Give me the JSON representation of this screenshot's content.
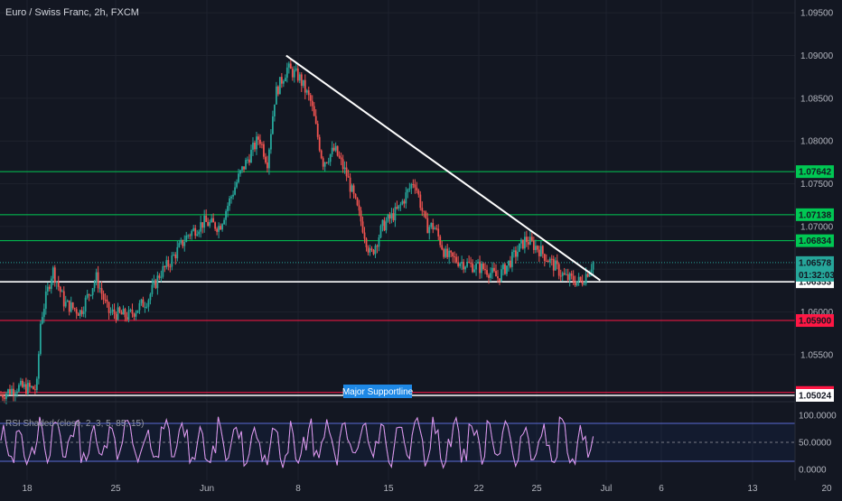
{
  "chart_title": "Euro / Swiss Franc, 2h, FXCM",
  "rsi_title": "RSI Shaded (close, 2, 3, 5, 85, 15)",
  "annotation": "Major Supportline",
  "colors": {
    "background": "#131722",
    "up": "#26a69a",
    "down": "#ef5350",
    "green_line": "#00c853",
    "red_line": "#ff1744",
    "white_line": "#ffffff",
    "annotation_bg": "#1e88e5"
  },
  "chart_data": [
    {
      "type": "candlestick",
      "title": "Euro / Swiss Franc, 2h, FXCM",
      "ylim": [
        1.0495,
        1.0965
      ],
      "x_ticks": [
        "18",
        "25",
        "Jun",
        "8",
        "15",
        "22",
        "25",
        "Jul",
        "6",
        "13",
        "20"
      ],
      "y_ticks": [
        "1.09500",
        "1.09000",
        "1.08500",
        "1.08000",
        "1.07500",
        "1.07000",
        "1.06500",
        "1.06000",
        "1.05500",
        "1.05000"
      ],
      "close_path": [
        [
          0,
          1.0503
        ],
        [
          0.02,
          1.0512
        ],
        [
          0.045,
          1.051
        ],
        [
          0.05,
          1.059
        ],
        [
          0.065,
          1.065
        ],
        [
          0.08,
          1.061
        ],
        [
          0.1,
          1.06
        ],
        [
          0.12,
          1.064
        ],
        [
          0.135,
          1.06
        ],
        [
          0.16,
          1.0595
        ],
        [
          0.185,
          1.0615
        ],
        [
          0.2,
          1.0645
        ],
        [
          0.21,
          1.0655
        ],
        [
          0.235,
          1.069
        ],
        [
          0.255,
          1.0705
        ],
        [
          0.275,
          1.07
        ],
        [
          0.3,
          1.076
        ],
        [
          0.325,
          1.0805
        ],
        [
          0.335,
          1.0775
        ],
        [
          0.345,
          1.0855
        ],
        [
          0.36,
          1.0885
        ],
        [
          0.375,
          1.0875
        ],
        [
          0.39,
          1.0845
        ],
        [
          0.405,
          1.0775
        ],
        [
          0.42,
          1.079
        ],
        [
          0.435,
          1.076
        ],
        [
          0.455,
          1.07
        ],
        [
          0.465,
          1.0665
        ],
        [
          0.48,
          1.07
        ],
        [
          0.5,
          1.072
        ],
        [
          0.52,
          1.0755
        ],
        [
          0.535,
          1.07
        ],
        [
          0.545,
          1.07
        ],
        [
          0.56,
          1.0665
        ],
        [
          0.59,
          1.0655
        ],
        [
          0.61,
          1.065
        ],
        [
          0.625,
          1.064
        ],
        [
          0.645,
          1.0665
        ],
        [
          0.66,
          1.0685
        ],
        [
          0.675,
          1.0675
        ],
        [
          0.69,
          1.066
        ],
        [
          0.71,
          1.064
        ],
        [
          0.73,
          1.0635
        ],
        [
          0.745,
          1.0658
        ]
      ],
      "current_price": "1.06578",
      "countdown": "01:32:03",
      "price_tags": [
        {
          "label": "1.07642",
          "value": 1.07642,
          "kind": "green"
        },
        {
          "label": "1.07138",
          "value": 1.07138,
          "kind": "green"
        },
        {
          "label": "1.06834",
          "value": 1.06834,
          "kind": "green"
        },
        {
          "label": "1.06353",
          "value": 1.06353,
          "kind": "white"
        },
        {
          "label": "1.05900",
          "value": 1.059,
          "kind": "red"
        },
        {
          "label": "1.05058",
          "value": 1.05058,
          "kind": "red"
        },
        {
          "label": "1.05024",
          "value": 1.05024,
          "kind": "white"
        }
      ],
      "trendline": [
        [
          0.36,
          1.09
        ],
        [
          0.755,
          1.0637
        ]
      ]
    },
    {
      "type": "line",
      "title": "RSI Shaded (close, 2, 3, 5, 85, 15)",
      "ylim": [
        0,
        100
      ],
      "y_ticks": [
        "100.0000",
        "50.0000",
        "0.0000"
      ],
      "levels": [
        85,
        50,
        15
      ]
    }
  ]
}
